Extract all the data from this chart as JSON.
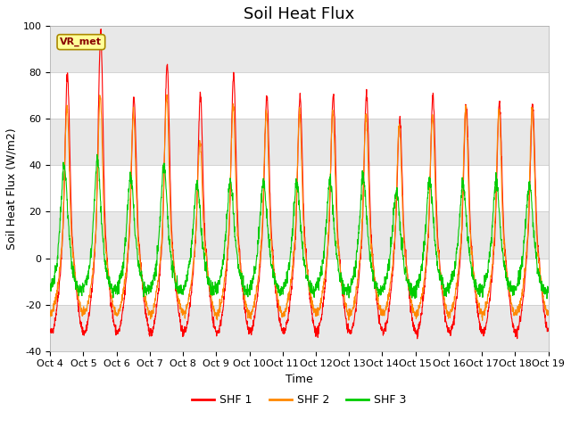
{
  "title": "Soil Heat Flux",
  "ylabel": "Soil Heat Flux (W/m2)",
  "xlabel": "Time",
  "ylim": [
    -40,
    100
  ],
  "start_day": 4,
  "num_days": 15,
  "fig_bg_color": "#ffffff",
  "plot_bg_color": "#ffffff",
  "band_color": "#e8e8e8",
  "line_colors": [
    "#ff0000",
    "#ff8800",
    "#00cc00"
  ],
  "line_labels": [
    "SHF 1",
    "SHF 2",
    "SHF 3"
  ],
  "vr_met_box_facecolor": "#ffff99",
  "vr_met_box_edgecolor": "#aa8800",
  "vr_met_text_color": "#880000",
  "grid_color": "#cccccc",
  "yticks": [
    -40,
    -20,
    0,
    20,
    40,
    60,
    80,
    100
  ],
  "title_fontsize": 13,
  "axis_label_fontsize": 9,
  "tick_label_fontsize": 8,
  "shf1_peaks": [
    79,
    97,
    69,
    84,
    70,
    79,
    70,
    69,
    70,
    71,
    60,
    70,
    67,
    67,
    66
  ],
  "shf2_peaks": [
    65,
    70,
    62,
    70,
    50,
    65,
    63,
    62,
    63,
    61,
    57,
    62,
    64,
    64,
    64
  ],
  "shf3_peaks": [
    40,
    42,
    35,
    40,
    32,
    33,
    33,
    33,
    33,
    35,
    29,
    33,
    32,
    33,
    32
  ]
}
